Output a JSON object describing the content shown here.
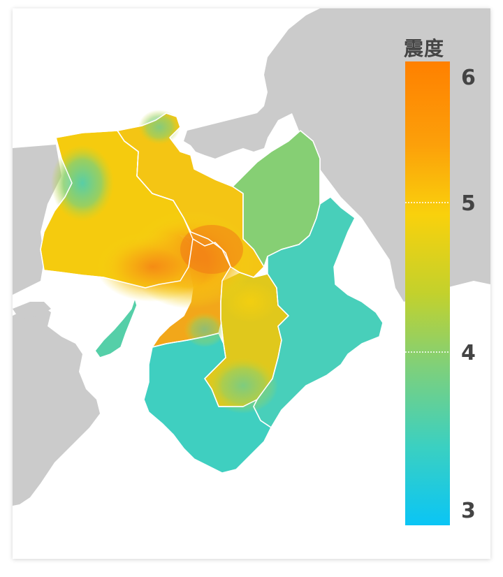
{
  "legend": {
    "title": "震度",
    "ticks": [
      {
        "value": 6,
        "label": "6"
      },
      {
        "value": 5,
        "label": "5"
      },
      {
        "value": 4,
        "label": "4"
      },
      {
        "value": 3,
        "label": "3"
      }
    ],
    "range": [
      3,
      6
    ],
    "colors": {
      "high": "#ff8000",
      "mid_high": "#f9d10c",
      "mid_low": "#7ed07b",
      "low": "#0ac5f5"
    }
  },
  "map": {
    "land_color": "#cbcbcb",
    "sea_color": "#ffffff",
    "border_color": "#ffffff"
  }
}
